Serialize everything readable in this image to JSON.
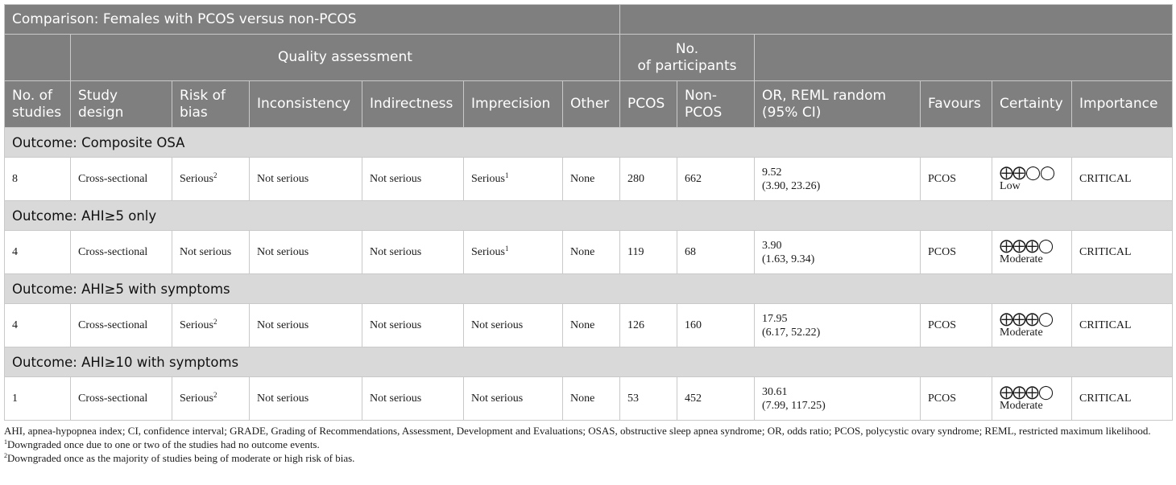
{
  "table": {
    "comparison": "Comparison: Females with PCOS versus non-PCOS",
    "group_headers": {
      "quality_assessment": "Quality assessment",
      "no_participants": "No.\nof participants"
    },
    "columns": [
      "No. of studies",
      "Study design",
      "Risk of bias",
      "Inconsistency",
      "Indirectness",
      "Imprecision",
      "Other",
      "PCOS",
      "Non-PCOS",
      "OR, REML random (95% CI)",
      "Favours",
      "Certainty",
      "Importance"
    ],
    "outcomes": [
      {
        "title": "Outcome: Composite OSA",
        "row": {
          "n_studies": "8",
          "design": "Cross-sectional",
          "risk_of_bias": "Serious",
          "risk_sup": "2",
          "inconsistency": "Not serious",
          "indirectness": "Not serious",
          "imprecision": "Serious",
          "imprecision_sup": "1",
          "other": "None",
          "pcos": "280",
          "non_pcos": "662",
          "or_value": "9.52",
          "or_ci": "(3.90, 23.26)",
          "favours": "PCOS",
          "certainty_symbols": "⨁⨁◯◯",
          "certainty_label": "Low",
          "importance": "CRITICAL"
        }
      },
      {
        "title": "Outcome: AHI≥5 only",
        "row": {
          "n_studies": "4",
          "design": "Cross-sectional",
          "risk_of_bias": "Not serious",
          "risk_sup": "",
          "inconsistency": "Not serious",
          "indirectness": "Not serious",
          "imprecision": "Serious",
          "imprecision_sup": "1",
          "other": "None",
          "pcos": "119",
          "non_pcos": "68",
          "or_value": "3.90",
          "or_ci": "(1.63, 9.34)",
          "favours": "PCOS",
          "certainty_symbols": "⨁⨁⨁◯",
          "certainty_label": "Moderate",
          "importance": "CRITICAL"
        }
      },
      {
        "title": "Outcome: AHI≥5 with symptoms",
        "row": {
          "n_studies": "4",
          "design": "Cross-sectional",
          "risk_of_bias": "Serious",
          "risk_sup": "2",
          "inconsistency": "Not serious",
          "indirectness": "Not serious",
          "imprecision": "Not serious",
          "imprecision_sup": "",
          "other": "None",
          "pcos": "126",
          "non_pcos": "160",
          "or_value": "17.95",
          "or_ci": "(6.17, 52.22)",
          "favours": "PCOS",
          "certainty_symbols": "⨁⨁⨁◯",
          "certainty_label": "Moderate",
          "importance": "CRITICAL"
        }
      },
      {
        "title": "Outcome: AHI≥10 with symptoms",
        "row": {
          "n_studies": "1",
          "design": "Cross-sectional",
          "risk_of_bias": "Serious",
          "risk_sup": "2",
          "inconsistency": "Not serious",
          "indirectness": "Not serious",
          "imprecision": "Not serious",
          "imprecision_sup": "",
          "other": "None",
          "pcos": "53",
          "non_pcos": "452",
          "or_value": "30.61",
          "or_ci": "(7.99, 117.25)",
          "favours": "PCOS",
          "certainty_symbols": "⨁⨁⨁◯",
          "certainty_label": "Moderate",
          "importance": "CRITICAL"
        }
      }
    ]
  },
  "footnotes": {
    "abbreviations": "AHI, apnea-hypopnea index; CI, confidence interval; GRADE, Grading of Recommendations, Assessment, Development and Evaluations; OSAS, obstructive sleep apnea syndrome; OR, odds ratio; PCOS, polycystic ovary syndrome; REML, restricted maximum likelihood.",
    "notes": [
      {
        "mark": "1",
        "text": "Downgraded once due to one or two of the studies had no outcome events."
      },
      {
        "mark": "2",
        "text": "Downgraded once as the majority of studies being of moderate or high risk of bias."
      }
    ]
  }
}
